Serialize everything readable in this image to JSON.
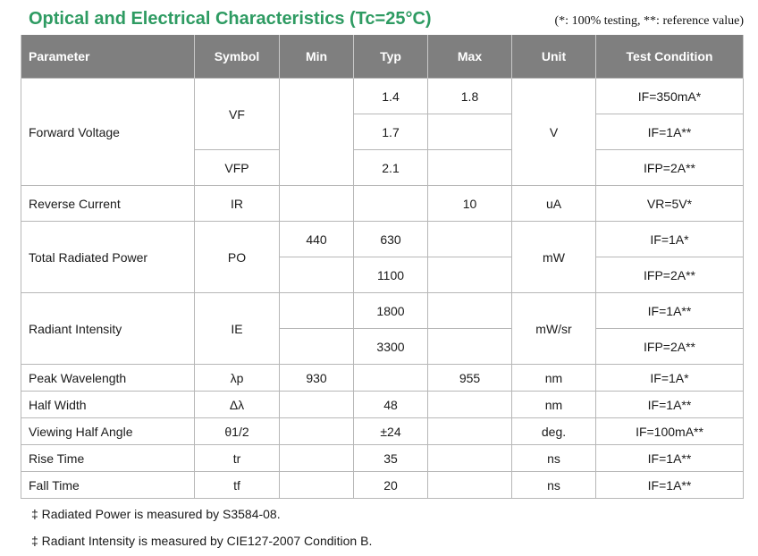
{
  "title": "Optical and Electrical Characteristics (Tc=25°C)",
  "note": "(*: 100% testing, **: reference value)",
  "table": {
    "headers": {
      "parameter": "Parameter",
      "symbol": "Symbol",
      "min": "Min",
      "typ": "Typ",
      "max": "Max",
      "unit": "Unit",
      "condition": "Test Condition"
    },
    "forward_voltage": {
      "parameter": "Forward Voltage",
      "symbol_vf": "VF",
      "symbol_vfp": "VFP",
      "unit": "V",
      "rows": [
        {
          "typ": "1.4",
          "max": "1.8",
          "condition": "IF=350mA*"
        },
        {
          "typ": "1.7",
          "max": "",
          "condition": "IF=1A**"
        },
        {
          "typ": "2.1",
          "max": "",
          "condition": "IFP=2A**"
        }
      ]
    },
    "reverse_current": {
      "parameter": "Reverse Current",
      "symbol": "IR",
      "min": "",
      "typ": "",
      "max": "10",
      "unit": "uA",
      "condition": "VR=5V*"
    },
    "total_radiated_power": {
      "parameter": "Total Radiated Power",
      "symbol": "PO",
      "unit": "mW",
      "rows": [
        {
          "min": "440",
          "typ": "630",
          "max": "",
          "condition": "IF=1A*"
        },
        {
          "min": "",
          "typ": "1100",
          "max": "",
          "condition": "IFP=2A**"
        }
      ]
    },
    "radiant_intensity": {
      "parameter": "Radiant Intensity",
      "symbol": "IE",
      "unit": "mW/sr",
      "rows": [
        {
          "min": "",
          "typ": "1800",
          "max": "",
          "condition": "IF=1A**"
        },
        {
          "min": "",
          "typ": "3300",
          "max": "",
          "condition": "IFP=2A**"
        }
      ]
    },
    "peak_wavelength": {
      "parameter": "Peak Wavelength",
      "symbol": "λp",
      "min": "930",
      "typ": "",
      "max": "955",
      "unit": "nm",
      "condition": "IF=1A*"
    },
    "half_width": {
      "parameter": "Half Width",
      "symbol": "Δλ",
      "min": "",
      "typ": "48",
      "max": "",
      "unit": "nm",
      "condition": "IF=1A**"
    },
    "viewing_half_angle": {
      "parameter": "Viewing Half Angle",
      "symbol": "θ1/2",
      "min": "",
      "typ": "±24",
      "max": "",
      "unit": "deg.",
      "condition": "IF=100mA**"
    },
    "rise_time": {
      "parameter": "Rise Time",
      "symbol": "tr",
      "min": "",
      "typ": "35",
      "max": "",
      "unit": "ns",
      "condition": "IF=1A**"
    },
    "fall_time": {
      "parameter": "Fall Time",
      "symbol": "tf",
      "min": "",
      "typ": "20",
      "max": "",
      "unit": "ns",
      "condition": "IF=1A**"
    }
  },
  "footnotes": [
    "‡ Radiated Power is measured by S3584-08.",
    "‡ Radiant Intensity is measured by CIE127-2007 Condition B."
  ]
}
